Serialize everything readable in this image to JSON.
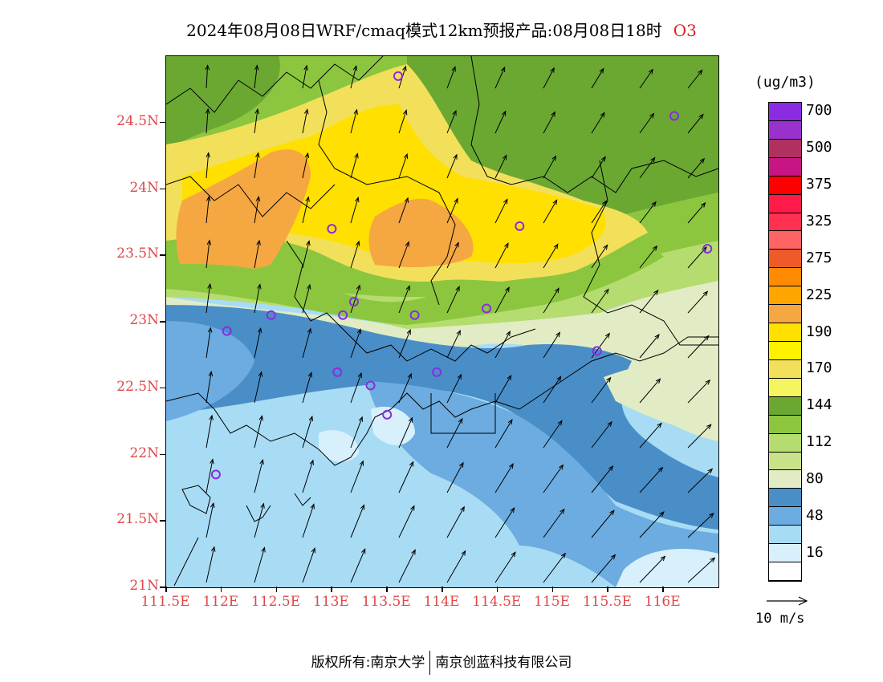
{
  "title": {
    "text": "2024年08月08日WRF/cmaq模式12km预报产品:08月08日18时",
    "species": "O3"
  },
  "axes": {
    "lat_labels": [
      "24.5N",
      "24N",
      "23.5N",
      "23N",
      "22.5N",
      "22N",
      "21.5N",
      "21N"
    ],
    "lat_values": [
      24.5,
      24.0,
      23.5,
      23.0,
      22.5,
      22.0,
      21.5,
      21.0
    ],
    "lon_labels": [
      "111.5E",
      "112E",
      "112.5E",
      "113E",
      "113.5E",
      "114E",
      "114.5E",
      "115E",
      "115.5E",
      "116E"
    ],
    "lon_values": [
      111.5,
      112.0,
      112.5,
      113.0,
      113.5,
      114.0,
      114.5,
      115.0,
      115.5,
      116.0
    ],
    "lon_range": [
      111.5,
      116.5
    ],
    "lat_range": [
      21.0,
      25.0
    ]
  },
  "legend": {
    "unit": "(ug/m3)",
    "levels": [
      {
        "color": "#8b2be2",
        "label": "700"
      },
      {
        "color": "#9932cc",
        "label": ""
      },
      {
        "color": "#b03060",
        "label": "500"
      },
      {
        "color": "#c71585",
        "label": ""
      },
      {
        "color": "#ff0000",
        "label": "375"
      },
      {
        "color": "#ff1a4a",
        "label": ""
      },
      {
        "color": "#ff3050",
        "label": "325"
      },
      {
        "color": "#ff6464",
        "label": ""
      },
      {
        "color": "#f05a28",
        "label": "275"
      },
      {
        "color": "#ff8c00",
        "label": ""
      },
      {
        "color": "#ffa500",
        "label": "225"
      },
      {
        "color": "#f5a742",
        "label": ""
      },
      {
        "color": "#ffe000",
        "label": "190"
      },
      {
        "color": "#fff200",
        "label": ""
      },
      {
        "color": "#f2e05a",
        "label": "170"
      },
      {
        "color": "#f5f560",
        "label": ""
      },
      {
        "color": "#6aa832",
        "label": "144"
      },
      {
        "color": "#8cc63f",
        "label": ""
      },
      {
        "color": "#b5dc6e",
        "label": "112"
      },
      {
        "color": "#c8e28a",
        "label": ""
      },
      {
        "color": "#e2ecc4",
        "label": "80"
      },
      {
        "color": "#4a8ec8",
        "label": ""
      },
      {
        "color": "#6cace0",
        "label": "48"
      },
      {
        "color": "#a8dcf5",
        "label": ""
      },
      {
        "color": "#d8f0fb",
        "label": "16"
      },
      {
        "color": "#ffffff",
        "label": ""
      }
    ]
  },
  "wind_reference": {
    "label": "10 m/s"
  },
  "footer": {
    "left": "版权所有:南京大学",
    "right": "南京创蓝科技有限公司"
  },
  "stations": [
    {
      "lon": 113.6,
      "lat": 24.85
    },
    {
      "lon": 116.1,
      "lat": 24.55
    },
    {
      "lon": 113.0,
      "lat": 23.7
    },
    {
      "lon": 114.7,
      "lat": 23.72
    },
    {
      "lon": 116.4,
      "lat": 23.55
    },
    {
      "lon": 112.45,
      "lat": 23.05
    },
    {
      "lon": 113.1,
      "lat": 23.05
    },
    {
      "lon": 113.2,
      "lat": 23.15
    },
    {
      "lon": 113.75,
      "lat": 23.05
    },
    {
      "lon": 114.4,
      "lat": 23.1
    },
    {
      "lon": 112.05,
      "lat": 22.93
    },
    {
      "lon": 115.4,
      "lat": 22.78
    },
    {
      "lon": 113.05,
      "lat": 22.62
    },
    {
      "lon": 113.35,
      "lat": 22.52
    },
    {
      "lon": 113.95,
      "lat": 22.62
    },
    {
      "lon": 113.5,
      "lat": 22.3
    },
    {
      "lon": 111.95,
      "lat": 21.85
    }
  ]
}
